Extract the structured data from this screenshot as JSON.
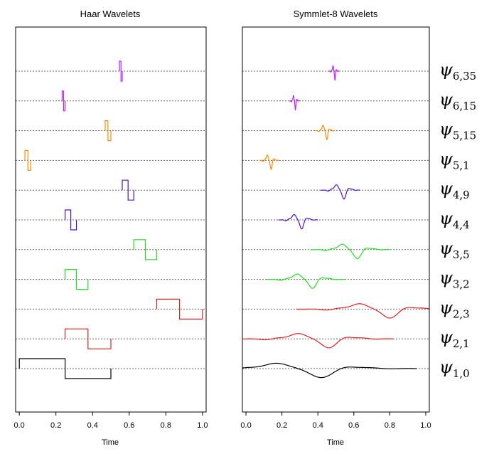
{
  "chart_data": [
    {
      "type": "line",
      "title": "Haar Wavelets",
      "xlabel": "Time",
      "ylabel": "",
      "xlim": [
        -0.02,
        1.02
      ],
      "xticks": [
        0.0,
        0.2,
        0.4,
        0.6,
        0.8,
        1.0
      ],
      "xtick_labels": [
        "0.0",
        "0.2",
        "0.4",
        "0.6",
        "0.8",
        "1.0"
      ],
      "grid": "dotted baselines",
      "series": [
        {
          "wavelet": "6,35",
          "color": "#c020ff",
          "x": [
            0.547,
            0.547,
            0.555,
            0.555,
            0.562,
            0.562
          ],
          "y": [
            0,
            1,
            1,
            -1,
            -1,
            0
          ]
        },
        {
          "wavelet": "6,15",
          "color": "#c020ff",
          "x": [
            0.234,
            0.234,
            0.242,
            0.242,
            0.25,
            0.25
          ],
          "y": [
            0,
            1,
            1,
            -1,
            -1,
            0
          ]
        },
        {
          "wavelet": "5,15",
          "color": "#ff8c00",
          "x": [
            0.469,
            0.469,
            0.484,
            0.484,
            0.5,
            0.5
          ],
          "y": [
            0,
            1,
            1,
            -1,
            -1,
            0
          ]
        },
        {
          "wavelet": "5,1",
          "color": "#ff8c00",
          "x": [
            0.031,
            0.031,
            0.047,
            0.047,
            0.062,
            0.062
          ],
          "y": [
            0,
            1,
            1,
            -1,
            -1,
            0
          ]
        },
        {
          "wavelet": "4,9",
          "color": "#4b0ed8",
          "x": [
            0.562,
            0.562,
            0.594,
            0.594,
            0.625,
            0.625
          ],
          "y": [
            0,
            1,
            1,
            -1,
            -1,
            0
          ]
        },
        {
          "wavelet": "4,4",
          "color": "#4b0ed8",
          "x": [
            0.25,
            0.25,
            0.281,
            0.281,
            0.312,
            0.312
          ],
          "y": [
            0,
            1,
            1,
            -1,
            -1,
            0
          ]
        },
        {
          "wavelet": "3,5",
          "color": "#22e022",
          "x": [
            0.625,
            0.625,
            0.688,
            0.688,
            0.75,
            0.75
          ],
          "y": [
            0,
            1,
            1,
            -1,
            -1,
            0
          ]
        },
        {
          "wavelet": "3,2",
          "color": "#22e022",
          "x": [
            0.25,
            0.25,
            0.312,
            0.312,
            0.375,
            0.375
          ],
          "y": [
            0,
            1,
            1,
            -1,
            -1,
            0
          ]
        },
        {
          "wavelet": "2,3",
          "color": "#e02020",
          "x": [
            0.75,
            0.75,
            0.875,
            0.875,
            1.0,
            1.0
          ],
          "y": [
            0,
            1,
            1,
            -1,
            -1,
            0
          ]
        },
        {
          "wavelet": "2,1",
          "color": "#e02020",
          "x": [
            0.25,
            0.25,
            0.375,
            0.375,
            0.5,
            0.5
          ],
          "y": [
            0,
            1,
            1,
            -1,
            -1,
            0
          ]
        },
        {
          "wavelet": "1,0",
          "color": "#000000",
          "x": [
            0.0,
            0.0,
            0.25,
            0.25,
            0.5,
            0.5
          ],
          "y": [
            0,
            1,
            1,
            -1,
            -1,
            0
          ]
        }
      ]
    },
    {
      "type": "line",
      "title": "Symmlet-8 Wavelets",
      "xlabel": "Time",
      "ylabel": "",
      "xlim": [
        -0.02,
        1.02
      ],
      "xticks": [
        0.0,
        0.2,
        0.4,
        0.6,
        0.8,
        1.0
      ],
      "xtick_labels": [
        "0.0",
        "0.2",
        "0.4",
        "0.6",
        "0.8",
        "1.0"
      ],
      "grid": "dotted baselines",
      "series": [
        {
          "wavelet": "6,35",
          "color": "#c020ff",
          "center": 0.49,
          "halfwidth": 0.028
        },
        {
          "wavelet": "6,15",
          "color": "#c020ff",
          "center": 0.27,
          "halfwidth": 0.028
        },
        {
          "wavelet": "5,15",
          "color": "#ff8c00",
          "center": 0.44,
          "halfwidth": 0.055
        },
        {
          "wavelet": "5,1",
          "color": "#ff8c00",
          "center": 0.13,
          "halfwidth": 0.055
        },
        {
          "wavelet": "4,9",
          "color": "#4b0ed8",
          "center": 0.525,
          "halfwidth": 0.11
        },
        {
          "wavelet": "4,4",
          "color": "#4b0ed8",
          "center": 0.29,
          "halfwidth": 0.11
        },
        {
          "wavelet": "3,5",
          "color": "#22e022",
          "center": 0.58,
          "halfwidth": 0.22
        },
        {
          "wavelet": "3,2",
          "color": "#22e022",
          "center": 0.33,
          "halfwidth": 0.22
        },
        {
          "wavelet": "2,3",
          "color": "#e02020",
          "center": 0.72,
          "halfwidth": 0.44
        },
        {
          "wavelet": "2,1",
          "color": "#e02020",
          "center": 0.38,
          "halfwidth": 0.44
        },
        {
          "wavelet": "1,0",
          "color": "#000000",
          "center": 0.3,
          "halfwidth": 0.65
        }
      ]
    }
  ],
  "wavelet_labels": [
    {
      "symbol": "ψ",
      "sub": "6,35"
    },
    {
      "symbol": "ψ",
      "sub": "6,15"
    },
    {
      "symbol": "ψ",
      "sub": "5,15"
    },
    {
      "symbol": "ψ",
      "sub": "5,1"
    },
    {
      "symbol": "ψ",
      "sub": "4,9"
    },
    {
      "symbol": "ψ",
      "sub": "4,4"
    },
    {
      "symbol": "ψ",
      "sub": "3,5"
    },
    {
      "symbol": "ψ",
      "sub": "3,2"
    },
    {
      "symbol": "ψ",
      "sub": "2,3"
    },
    {
      "symbol": "ψ",
      "sub": "2,1"
    },
    {
      "symbol": "ψ",
      "sub": "1,0"
    }
  ]
}
